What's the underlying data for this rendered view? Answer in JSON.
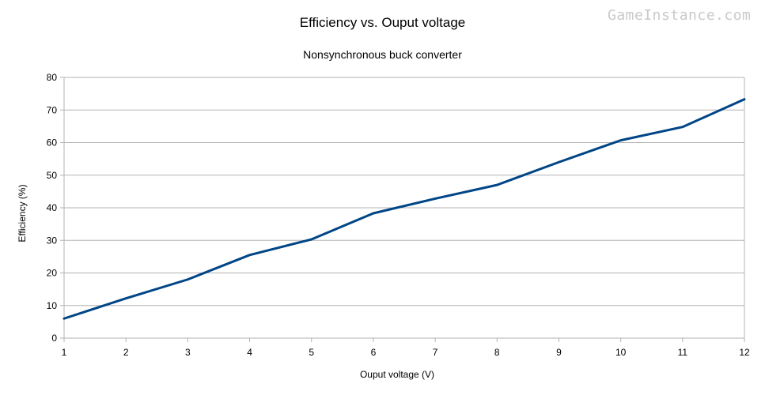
{
  "watermark": "GameInstance.com",
  "chart_data": {
    "type": "line",
    "title": "Efficiency vs. Ouput voltage",
    "subtitle": "Nonsynchronous buck converter",
    "xlabel": "Ouput voltage (V)",
    "ylabel": "Efficiency (%)",
    "x": [
      1,
      2,
      3,
      4,
      5,
      6,
      7,
      8,
      9,
      10,
      11,
      12
    ],
    "series": [
      {
        "values": [
          6.0,
          12.2,
          18.0,
          25.5,
          30.3,
          38.3,
          42.8,
          47.0,
          54.0,
          60.7,
          64.8,
          73.3
        ]
      }
    ],
    "xlim": [
      1,
      12
    ],
    "ylim": [
      0,
      80
    ],
    "yticks": [
      0,
      10,
      20,
      30,
      40,
      50,
      60,
      70,
      80
    ],
    "xticks": [
      1,
      2,
      3,
      4,
      5,
      6,
      7,
      8,
      9,
      10,
      11,
      12
    ],
    "grid": true,
    "legend": "none",
    "colors": {
      "line": "#004586",
      "grid": "#b3b3b3"
    }
  }
}
